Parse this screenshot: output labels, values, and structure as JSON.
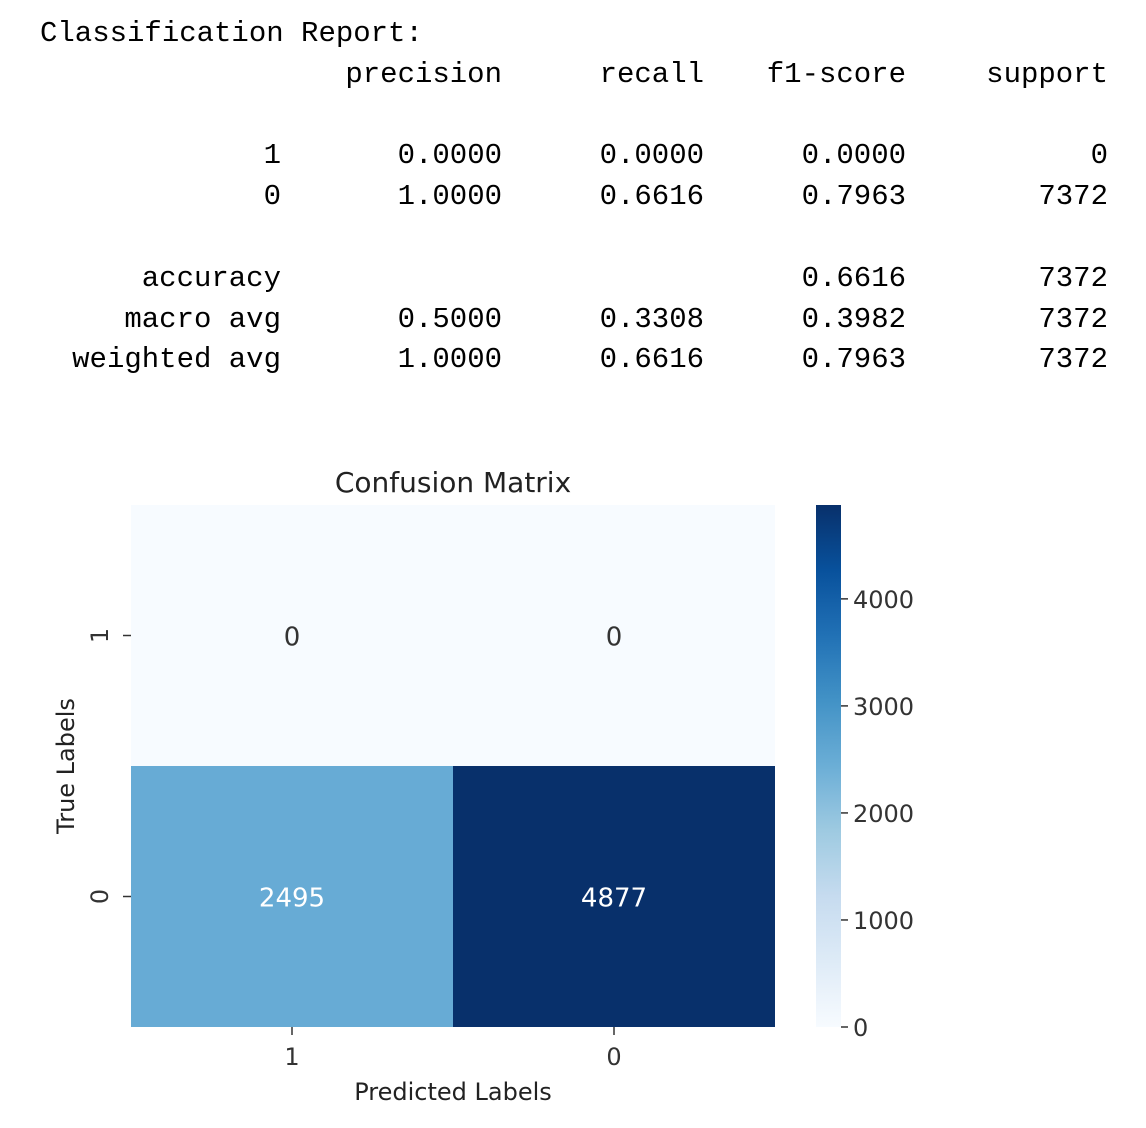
{
  "report": {
    "title": "Classification Report:",
    "headers": [
      "precision",
      "recall",
      "f1-score",
      "support"
    ],
    "rows": [
      {
        "label": "1",
        "values": [
          "0.0000",
          "0.0000",
          "0.0000",
          "0"
        ]
      },
      {
        "label": "0",
        "values": [
          "1.0000",
          "0.6616",
          "0.7963",
          "7372"
        ]
      }
    ],
    "summary": [
      {
        "label": "accuracy",
        "values": [
          "",
          "",
          "0.6616",
          "7372"
        ]
      },
      {
        "label": "macro avg",
        "values": [
          "0.5000",
          "0.3308",
          "0.3982",
          "7372"
        ]
      },
      {
        "label": "weighted avg",
        "values": [
          "1.0000",
          "0.6616",
          "0.7963",
          "7372"
        ]
      }
    ]
  },
  "chart_data": {
    "type": "heatmap",
    "title": "Confusion Matrix",
    "xlabel": "Predicted Labels",
    "ylabel": "True Labels",
    "x_categories": [
      "1",
      "0"
    ],
    "y_categories": [
      "1",
      "0"
    ],
    "values": [
      [
        0,
        0
      ],
      [
        2495,
        4877
      ]
    ],
    "colormap": "Blues",
    "colorbar": {
      "min": 0,
      "max": 4877,
      "ticks": [
        0,
        1000,
        2000,
        3000,
        4000
      ]
    },
    "colors": {
      "low": "#f7fbff",
      "high": "#08306b",
      "mid": "#6baed6"
    }
  }
}
